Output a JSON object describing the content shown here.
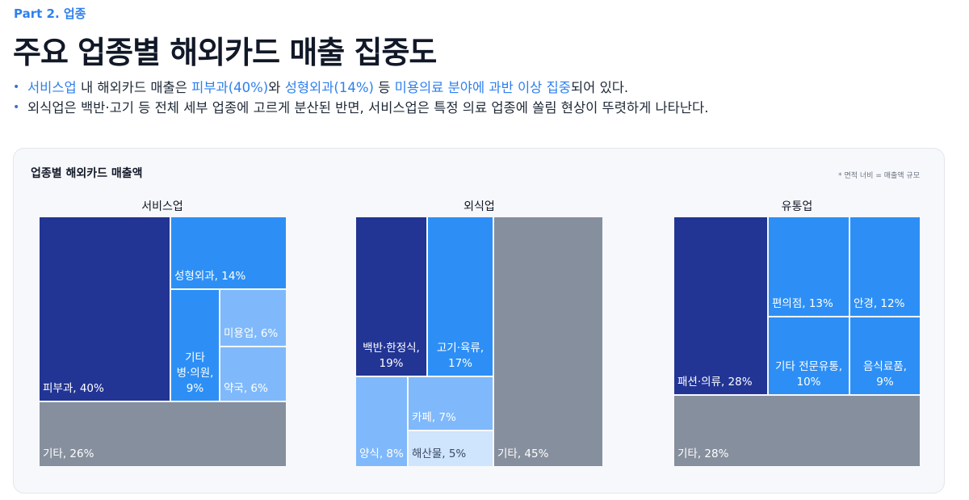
{
  "header": {
    "part": "Part 2. 업종",
    "title": "주요 업종별 해외카드 매출 집중도"
  },
  "bullets": {
    "b1": {
      "p1": "서비스업",
      "p2": " 내 해외카드 매출은 ",
      "p3": "피부과(40%)",
      "p4": "와 ",
      "p5": "성형외과(14%)",
      "p6": " 등 ",
      "p7": "미용의료 분야에 과반 이상 집중",
      "p8": "되어 있다."
    },
    "b2": "외식업은 백반·고기 등 전체 세부 업종에 고르게 분산된 반면, 서비스업은 특정 의료 업종에 쏠림 현상이 뚜렷하게 나타난다."
  },
  "card": {
    "title": "업종별 해외카드 매출액",
    "note": "* 면적 너비 = 매출액 규모"
  },
  "colors": {
    "navy": "#223594",
    "blue": "#2d8ff5",
    "light_blue": "#7fb9fb",
    "pale_blue": "#cfe4fd",
    "gray": "#868f9d"
  },
  "chart_data": [
    {
      "type": "treemap",
      "title": "서비스업",
      "items": [
        {
          "name": "피부과",
          "value": 40,
          "label": "피부과, 40%",
          "color": "navy"
        },
        {
          "name": "성형외과",
          "value": 14,
          "label": "성형외과, 14%",
          "color": "blue"
        },
        {
          "name": "기타 병·의원",
          "value": 9,
          "label": "기타\n병·의원,\n9%",
          "color": "blue"
        },
        {
          "name": "미용업",
          "value": 6,
          "label": "미용업, 6%",
          "color": "light_blue"
        },
        {
          "name": "약국",
          "value": 6,
          "label": "약국, 6%",
          "color": "light_blue"
        },
        {
          "name": "기타",
          "value": 26,
          "label": "기타, 26%",
          "color": "gray"
        }
      ]
    },
    {
      "type": "treemap",
      "title": "외식업",
      "items": [
        {
          "name": "백반·한정식",
          "value": 19,
          "label": "백반·한정식,\n19%",
          "color": "navy"
        },
        {
          "name": "고기·육류",
          "value": 17,
          "label": "고기·육류,\n17%",
          "color": "blue"
        },
        {
          "name": "양식",
          "value": 8,
          "label": "양식, 8%",
          "color": "light_blue"
        },
        {
          "name": "카페",
          "value": 7,
          "label": "카페, 7%",
          "color": "light_blue"
        },
        {
          "name": "해산물",
          "value": 5,
          "label": "해산물, 5%",
          "color": "pale_blue"
        },
        {
          "name": "기타",
          "value": 45,
          "label": "기타, 45%",
          "color": "gray"
        }
      ]
    },
    {
      "type": "treemap",
      "title": "유통업",
      "items": [
        {
          "name": "패션·의류",
          "value": 28,
          "label": "패션·의류, 28%",
          "color": "navy"
        },
        {
          "name": "편의점",
          "value": 13,
          "label": "편의점, 13%",
          "color": "blue"
        },
        {
          "name": "안경",
          "value": 12,
          "label": "안경, 12%",
          "color": "blue"
        },
        {
          "name": "기타 전문유통",
          "value": 10,
          "label": "기타 전문유통,\n10%",
          "color": "blue"
        },
        {
          "name": "음식료품",
          "value": 9,
          "label": "음식료품,\n9%",
          "color": "blue"
        },
        {
          "name": "기타",
          "value": 28,
          "label": "기타, 28%",
          "color": "gray"
        }
      ]
    }
  ]
}
